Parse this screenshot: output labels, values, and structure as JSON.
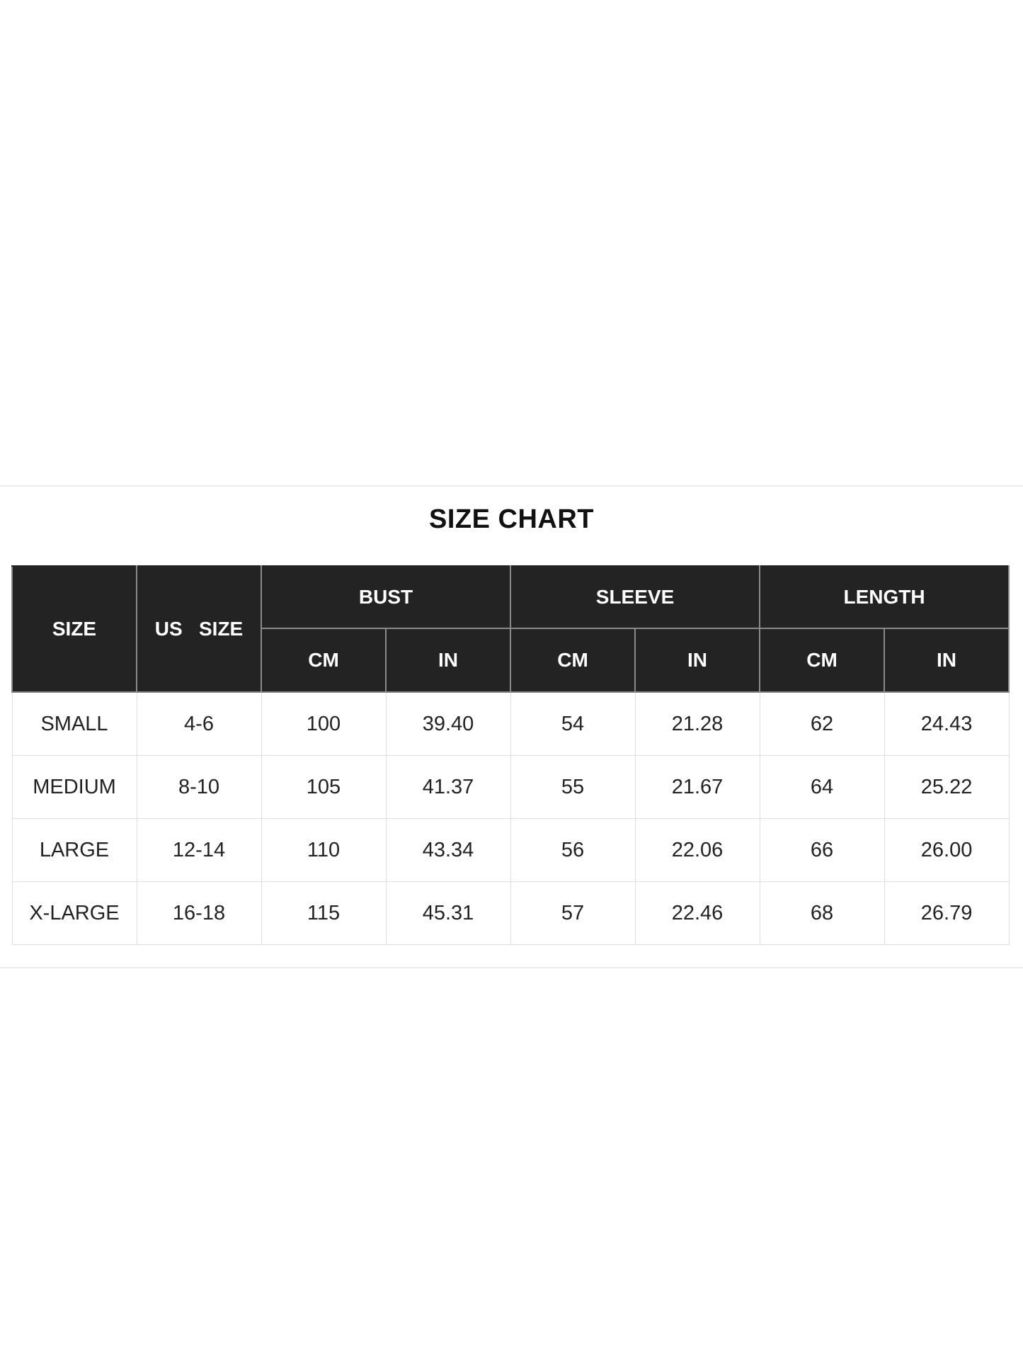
{
  "title": "SIZE CHART",
  "header": {
    "size": "SIZE",
    "us_size": "US   SIZE",
    "groups": [
      "BUST",
      "SLEEVE",
      "LENGTH"
    ],
    "units": [
      "CM",
      "IN",
      "CM",
      "IN",
      "CM",
      "IN"
    ]
  },
  "rows": [
    [
      "SMALL",
      "4-6",
      "100",
      "39.40",
      "54",
      "21.28",
      "62",
      "24.43"
    ],
    [
      "MEDIUM",
      "8-10",
      "105",
      "41.37",
      "55",
      "21.67",
      "64",
      "25.22"
    ],
    [
      "LARGE",
      "12-14",
      "110",
      "43.34",
      "56",
      "22.06",
      "66",
      "26.00"
    ],
    [
      "X-LARGE",
      "16-18",
      "115",
      "45.31",
      "57",
      "22.46",
      "68",
      "26.79"
    ]
  ],
  "colors": {
    "header_bg": "#232323",
    "header_text": "#ffffff",
    "border": "#dedede"
  }
}
